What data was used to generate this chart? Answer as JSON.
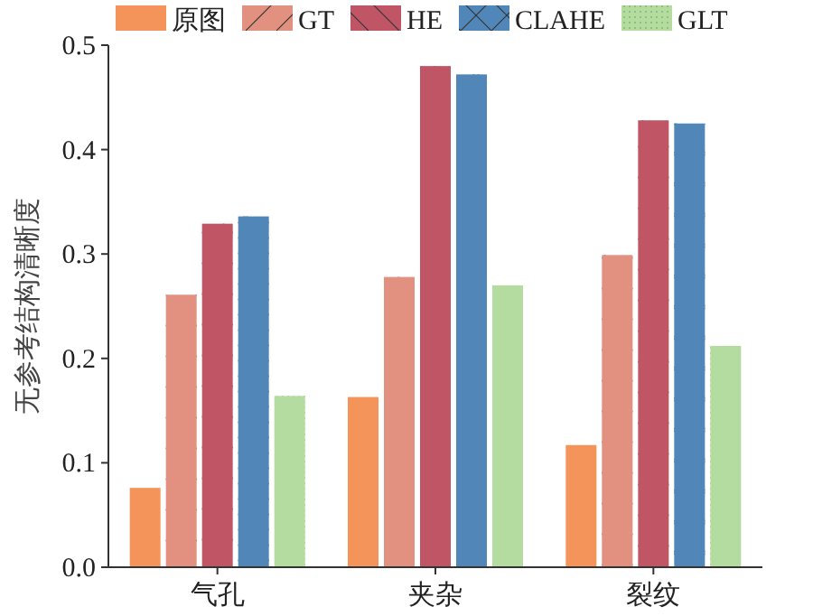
{
  "chart_data": {
    "type": "bar",
    "ylabel": "无参考结构清晰度",
    "categories": [
      "气孔",
      "夹杂",
      "裂纹"
    ],
    "series": [
      {
        "name": "原图",
        "color": "#f4945a",
        "values": [
          0.076,
          0.163,
          0.117
        ]
      },
      {
        "name": "GT",
        "color": "#e29080",
        "values": [
          0.261,
          0.278,
          0.299
        ]
      },
      {
        "name": "HE",
        "color": "#c05565",
        "values": [
          0.329,
          0.48,
          0.428
        ]
      },
      {
        "name": "CLAHE",
        "color": "#5186b8",
        "values": [
          0.336,
          0.472,
          0.425
        ]
      },
      {
        "name": "GLT",
        "color": "#b5dca0",
        "values": [
          0.164,
          0.27,
          0.212
        ]
      }
    ],
    "ylim": [
      0,
      0.5
    ],
    "yticks": [
      {
        "value": 0,
        "label": "0.0"
      },
      {
        "value": 0.1,
        "label": "0.1"
      },
      {
        "value": 0.2,
        "label": "0.2"
      },
      {
        "value": 0.3,
        "label": "0.3"
      },
      {
        "value": 0.4,
        "label": "0.4"
      },
      {
        "value": 0.5,
        "label": "0.5"
      }
    ],
    "legend": "top",
    "grid": false
  }
}
